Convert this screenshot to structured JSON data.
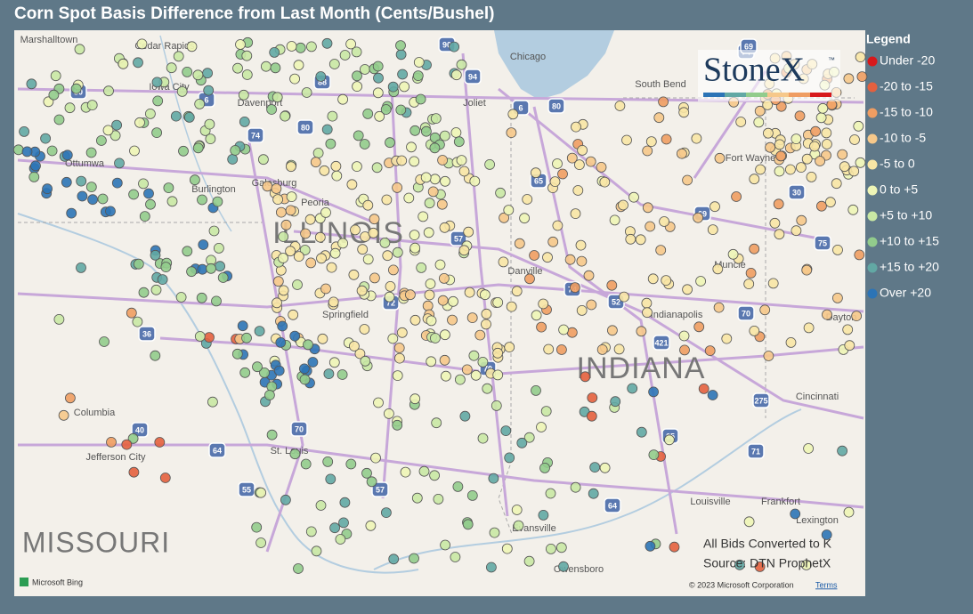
{
  "title": "Corn Spot Basis Difference from Last Month (Cents/Bushel)",
  "legend": {
    "title": "Legend",
    "items": [
      {
        "label": "Under -20",
        "color": "#d7191c"
      },
      {
        "label": "-20 to -15",
        "color": "#e4603e"
      },
      {
        "label": "-15 to -10",
        "color": "#ef9d62"
      },
      {
        "label": "-10 to -5",
        "color": "#f6c88a"
      },
      {
        "label": "-5 to 0",
        "color": "#f8e6a5"
      },
      {
        "label": "0 to +5",
        "color": "#eef5b6"
      },
      {
        "label": "+5 to +10",
        "color": "#c9e8a4"
      },
      {
        "label": "+10 to +15",
        "color": "#92cc8c"
      },
      {
        "label": "+15 to +20",
        "color": "#62a8a4"
      },
      {
        "label": "Over +20",
        "color": "#2c74b6"
      }
    ]
  },
  "logo": {
    "name": "StoneX",
    "mark": "™"
  },
  "states": [
    "ILLINOIS",
    "INDIANA",
    "MISSOURI"
  ],
  "cities": [
    "Marshalltown",
    "Cedar Rapids",
    "Iowa City",
    "Davenport",
    "Ottumwa",
    "Burlington",
    "Galesburg",
    "Peoria",
    "Chicago",
    "Joliet",
    "South Bend",
    "Fort Wayne",
    "Danville",
    "Muncie",
    "Indianapolis",
    "Springfield",
    "Columbia",
    "Jefferson City",
    "St. Louis",
    "Evansville",
    "Louisville",
    "Frankfort",
    "Lexington",
    "Owensboro",
    "Cincinnati",
    "Dayton"
  ],
  "shields": [
    "80",
    "90",
    "88",
    "74",
    "80",
    "6",
    "94",
    "80",
    "6",
    "74",
    "57",
    "65",
    "69",
    "30",
    "72",
    "74",
    "52",
    "70",
    "421",
    "70",
    "36",
    "40",
    "70",
    "64",
    "55",
    "57",
    "64",
    "65",
    "71",
    "275",
    "75",
    "69"
  ],
  "notes": [
    "All Bids Converted to K",
    "Source: DTN ProphetX"
  ],
  "attribution": {
    "provider": "Microsoft Bing",
    "copyright": "© 2023 Microsoft Corporation",
    "terms": "Terms"
  }
}
